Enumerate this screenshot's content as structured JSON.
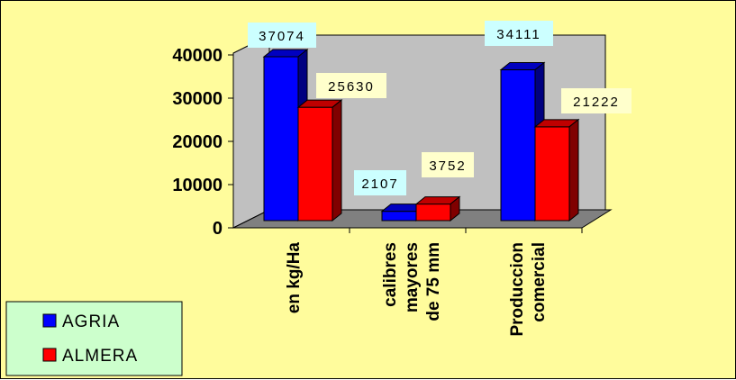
{
  "chart_data": {
    "type": "bar",
    "categories": [
      [
        "en kg/Ha"
      ],
      [
        "calibres",
        "mayores",
        "de 75 mm"
      ],
      [
        "Produccion",
        "comercial"
      ]
    ],
    "series": [
      {
        "name": "AGRIA",
        "values": [
          37074,
          2107,
          34111
        ],
        "labels": [
          "37074",
          "2107",
          "34111"
        ],
        "color": "#0000ff"
      },
      {
        "name": "ALMERA",
        "values": [
          25630,
          3752,
          21222
        ],
        "labels": [
          "25630",
          "3752",
          "21222"
        ],
        "color": "#ff0000"
      }
    ],
    "yticks": [
      "0",
      "10000",
      "20000",
      "30000",
      "40000"
    ],
    "ylim": [
      0,
      40000
    ],
    "grid": false,
    "legend_position": "bottom-left",
    "colors": {
      "background": "#fffc9c",
      "plot_wall": "#c0c0c0",
      "floor": "#808080",
      "label_box_agria": "#ccffff",
      "label_box_almera": "#ffffcc",
      "legend_background": "#ccffcc"
    }
  }
}
